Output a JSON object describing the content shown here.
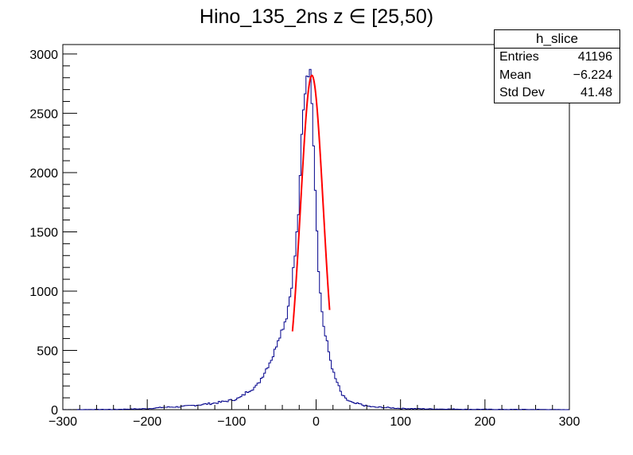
{
  "chart_data": {
    "type": "histogram",
    "title": "Hino_135_2ns z  ∈ [25,50)",
    "xlabel": "",
    "ylabel": "",
    "xlim": [
      -300,
      300
    ],
    "ylim": [
      0,
      3080
    ],
    "x_ticks": [
      "−300",
      "−200",
      "−100",
      "0",
      "100",
      "200",
      "300"
    ],
    "y_ticks": [
      "0",
      "500",
      "1000",
      "1500",
      "2000",
      "2500",
      "3000"
    ],
    "bin_width": 2,
    "x": [
      -80,
      -70,
      -60,
      -50,
      -45,
      -40,
      -35,
      -30,
      -25,
      -20,
      -17,
      -14,
      -11,
      -8,
      -6,
      -4,
      -2,
      0,
      2,
      4,
      7,
      10,
      13,
      16,
      19,
      22,
      25,
      30,
      35,
      40,
      45,
      50,
      60,
      70,
      80,
      90,
      100,
      120,
      140,
      160,
      180,
      200,
      220,
      240,
      260,
      280,
      -280,
      -260,
      -240,
      -220,
      -200,
      -180,
      -160,
      -140,
      -120,
      -100,
      -90
    ],
    "values": [
      160,
      200,
      330,
      470,
      600,
      680,
      790,
      1000,
      1300,
      1750,
      2300,
      2620,
      2830,
      2870,
      2780,
      2480,
      2060,
      1700,
      1350,
      1050,
      830,
      650,
      560,
      450,
      360,
      270,
      230,
      130,
      90,
      70,
      50,
      50,
      30,
      20,
      20,
      15,
      10,
      8,
      5,
      5,
      3,
      3,
      2,
      2,
      2,
      1,
      1,
      2,
      2,
      5,
      8,
      20,
      25,
      40,
      55,
      80,
      100
    ],
    "fit_color": "#ff0000",
    "hist_color": "#00008b",
    "stats": {
      "name": "h_slice",
      "entries_label": "Entries",
      "entries": "41196",
      "mean_label": "Mean",
      "mean": "−6.224",
      "std_label": "Std Dev",
      "std": "41.48"
    }
  }
}
